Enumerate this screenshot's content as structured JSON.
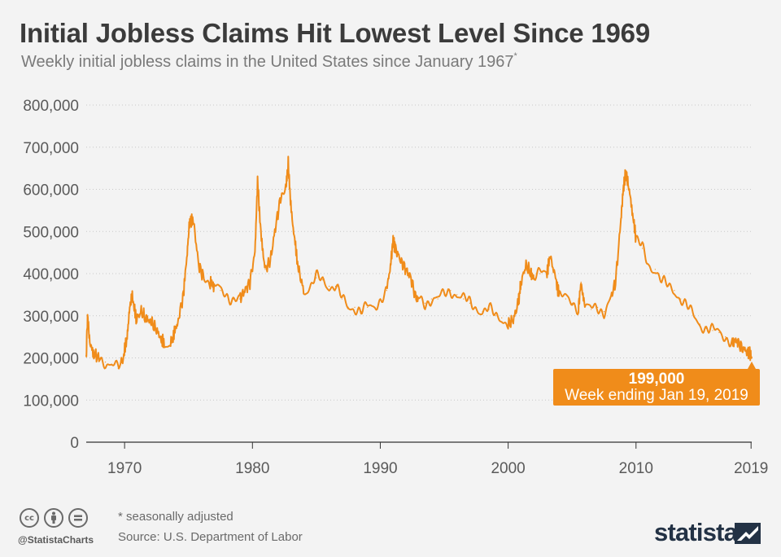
{
  "title": "Initial Jobless Claims Hit Lowest Level Since 1969",
  "subtitle": "Weekly initial jobless claims in the United States since January 1967",
  "subtitle_mark": "*",
  "callout": {
    "value": "199,000",
    "label": "Week ending Jan 19, 2019"
  },
  "footer": {
    "footnote": "* seasonally adjusted",
    "source": "Source: U.S. Department of Labor",
    "handle": "@StatistaCharts",
    "brand": "statista",
    "license_icons": [
      "cc-icon",
      "by-icon",
      "nd-icon"
    ]
  },
  "colors": {
    "line": "#f08c1a",
    "grid": "#c8c8c8",
    "title": "#3b3b3b",
    "brand": "#233245"
  },
  "chart_data": {
    "type": "line",
    "title": "Initial Jobless Claims Hit Lowest Level Since 1969",
    "xlabel": "",
    "ylabel": "",
    "xlim": [
      1967,
      2019.05
    ],
    "ylim": [
      0,
      800000
    ],
    "yticks": [
      0,
      100000,
      200000,
      300000,
      400000,
      500000,
      600000,
      700000,
      800000
    ],
    "ytick_labels": [
      "0",
      "100,000",
      "200,000",
      "300,000",
      "400,000",
      "500,000",
      "600,000",
      "700,000",
      "800,000"
    ],
    "xticks": [
      1970,
      1980,
      1990,
      2000,
      2010,
      2019
    ],
    "xtick_labels": [
      "1970",
      "1980",
      "1990",
      "2000",
      "2010",
      "2019"
    ],
    "grid": "horizontal dotted",
    "series": [
      {
        "color": "#f08c1a",
        "x": [
          1967.0,
          1967.1,
          1967.3,
          1967.6,
          1968.0,
          1968.5,
          1969.0,
          1969.5,
          1969.9,
          1970.2,
          1970.4,
          1970.6,
          1970.9,
          1971.3,
          1971.7,
          1972.0,
          1972.4,
          1972.8,
          1973.1,
          1973.6,
          1973.9,
          1974.2,
          1974.6,
          1974.9,
          1975.1,
          1975.4,
          1975.8,
          1976.2,
          1976.7,
          1977.0,
          1977.5,
          1978.0,
          1978.5,
          1979.0,
          1979.4,
          1979.8,
          1980.2,
          1980.4,
          1980.7,
          1981.0,
          1981.4,
          1981.8,
          1982.2,
          1982.6,
          1982.8,
          1983.0,
          1983.3,
          1983.6,
          1984.0,
          1984.5,
          1985.0,
          1985.5,
          1986.0,
          1986.5,
          1987.0,
          1987.5,
          1988.0,
          1988.5,
          1989.0,
          1989.5,
          1990.0,
          1990.5,
          1990.8,
          1991.0,
          1991.2,
          1991.6,
          1992.0,
          1992.4,
          1992.8,
          1993.0,
          1993.5,
          1994.0,
          1994.5,
          1995.0,
          1995.5,
          1996.0,
          1996.5,
          1997.0,
          1997.5,
          1998.0,
          1998.5,
          1999.0,
          1999.5,
          2000.0,
          2000.4,
          2000.8,
          2001.0,
          2001.4,
          2001.8,
          2002.0,
          2002.5,
          2003.0,
          2003.3,
          2003.7,
          2004.0,
          2004.5,
          2005.0,
          2005.5,
          2005.7,
          2006.0,
          2006.5,
          2007.0,
          2007.5,
          2008.0,
          2008.4,
          2008.8,
          2009.0,
          2009.2,
          2009.4,
          2009.7,
          2010.0,
          2010.5,
          2011.0,
          2011.5,
          2012.0,
          2012.5,
          2013.0,
          2013.5,
          2014.0,
          2014.5,
          2015.0,
          2015.5,
          2016.0,
          2016.5,
          2017.0,
          2017.5,
          2017.8,
          2018.0,
          2018.4,
          2018.7,
          2018.9,
          2019.05
        ],
        "values": [
          205000,
          300000,
          230000,
          210000,
          200000,
          190000,
          185000,
          175000,
          200000,
          250000,
          320000,
          350000,
          290000,
          310000,
          290000,
          290000,
          270000,
          250000,
          230000,
          235000,
          260000,
          290000,
          350000,
          450000,
          530000,
          520000,
          420000,
          390000,
          380000,
          370000,
          360000,
          350000,
          340000,
          340000,
          360000,
          380000,
          450000,
          620000,
          480000,
          410000,
          430000,
          510000,
          580000,
          600000,
          660000,
          560000,
          480000,
          410000,
          360000,
          365000,
          390000,
          385000,
          370000,
          370000,
          340000,
          320000,
          320000,
          310000,
          320000,
          320000,
          340000,
          360000,
          420000,
          480000,
          460000,
          430000,
          410000,
          390000,
          340000,
          340000,
          330000,
          340000,
          340000,
          350000,
          360000,
          350000,
          340000,
          330000,
          320000,
          310000,
          315000,
          300000,
          295000,
          280000,
          290000,
          330000,
          380000,
          420000,
          400000,
          390000,
          400000,
          400000,
          440000,
          390000,
          350000,
          340000,
          330000,
          320000,
          380000,
          320000,
          315000,
          320000,
          310000,
          340000,
          380000,
          520000,
          600000,
          640000,
          610000,
          550000,
          480000,
          460000,
          420000,
          410000,
          380000,
          370000,
          360000,
          340000,
          320000,
          300000,
          280000,
          270000,
          265000,
          260000,
          250000,
          240000,
          240000,
          235000,
          220000,
          215000,
          215000,
          199000
        ]
      }
    ]
  }
}
